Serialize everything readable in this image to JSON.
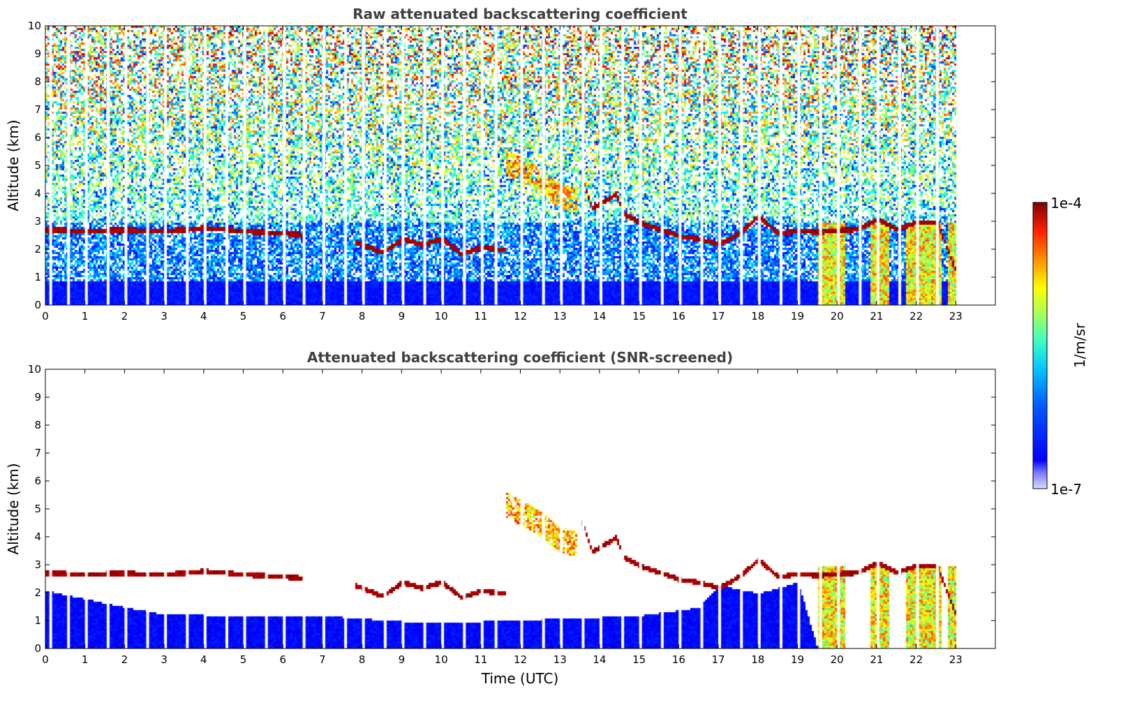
{
  "chart_data": [
    {
      "type": "heatmap",
      "title": "Raw attenuated backscattering coefficient",
      "xlabel": "",
      "ylabel": "Altitude (km)",
      "xlim": [
        0,
        24
      ],
      "ylim": [
        0,
        10
      ],
      "xticks": [
        "0",
        "1",
        "2",
        "3",
        "4",
        "5",
        "6",
        "7",
        "8",
        "9",
        "10",
        "11",
        "12",
        "13",
        "14",
        "15",
        "16",
        "17",
        "18",
        "19",
        "20",
        "21",
        "22",
        "23"
      ],
      "yticks": [
        "0",
        "1",
        "2",
        "3",
        "4",
        "5",
        "6",
        "7",
        "8",
        "9",
        "10"
      ],
      "colormap": "jet",
      "data_end_hour": 23,
      "gap_hours": [
        0.1,
        0.55,
        1.0,
        1.55,
        2.0,
        2.55,
        3.0,
        3.55,
        4.0,
        4.55,
        5.0,
        5.55,
        6.0,
        6.5,
        7.0,
        7.55,
        8.0,
        8.55,
        9.0,
        9.55,
        10.0,
        10.55,
        11.0,
        11.35,
        12.0,
        12.55,
        13.0,
        13.55,
        14.0,
        14.55,
        15.0,
        15.55,
        16.0,
        16.55,
        17.0,
        17.55,
        18.0,
        18.55,
        19.0,
        19.55,
        20.0,
        20.55,
        21.0,
        21.55,
        22.0,
        22.5
      ],
      "cloud_layer": [
        {
          "start": 0.0,
          "end": 6.5,
          "alt_km": [
            [
              0,
              2.72
            ],
            [
              1,
              2.7
            ],
            [
              2,
              2.72
            ],
            [
              3,
              2.68
            ],
            [
              4,
              2.8
            ],
            [
              5,
              2.68
            ],
            [
              6,
              2.6
            ],
            [
              6.5,
              2.55
            ]
          ]
        },
        {
          "start": 7.8,
          "end": 11.6,
          "alt_km": [
            [
              7.8,
              2.3
            ],
            [
              8.5,
              1.9
            ],
            [
              9,
              2.4
            ],
            [
              9.5,
              2.2
            ],
            [
              10,
              2.4
            ],
            [
              10.5,
              1.85
            ],
            [
              11,
              2.1
            ],
            [
              11.6,
              2.0
            ]
          ]
        },
        {
          "start": 13.5,
          "end": 19.0,
          "alt_km": [
            [
              13.5,
              4.7
            ],
            [
              13.8,
              3.5
            ],
            [
              14.4,
              4.0
            ],
            [
              14.6,
              3.3
            ],
            [
              15,
              3.0
            ],
            [
              16,
              2.5
            ],
            [
              16.5,
              2.4
            ],
            [
              17,
              2.2
            ],
            [
              17.5,
              2.6
            ],
            [
              18,
              3.2
            ],
            [
              18.5,
              2.6
            ],
            [
              19,
              2.7
            ]
          ]
        },
        {
          "start": 19.0,
          "end": 23.0,
          "alt_km": [
            [
              19,
              2.7
            ],
            [
              19.5,
              2.65
            ],
            [
              20,
              2.7
            ],
            [
              20.5,
              2.75
            ],
            [
              21,
              3.1
            ],
            [
              21.5,
              2.75
            ],
            [
              22,
              3.0
            ],
            [
              22.5,
              3.0
            ],
            [
              23,
              1.2
            ]
          ]
        }
      ],
      "plume": [
        [
          11.6,
          5.2
        ],
        [
          12.5,
          4.5
        ],
        [
          13.0,
          3.9
        ],
        [
          13.4,
          3.8
        ]
      ],
      "rain_columns": [
        [
          19.5,
          20.2
        ],
        [
          20.8,
          21.3
        ],
        [
          21.7,
          22.6
        ],
        [
          22.8,
          23.0
        ]
      ]
    },
    {
      "type": "heatmap",
      "title": "Attenuated backscattering coefficient (SNR-screened)",
      "xlabel": "Time (UTC)",
      "ylabel": "Altitude (km)",
      "xlim": [
        0,
        24
      ],
      "ylim": [
        0,
        10
      ],
      "xticks": [
        "0",
        "1",
        "2",
        "3",
        "4",
        "5",
        "6",
        "7",
        "8",
        "9",
        "10",
        "11",
        "12",
        "13",
        "14",
        "15",
        "16",
        "17",
        "18",
        "19",
        "20",
        "21",
        "22",
        "23"
      ],
      "yticks": [
        "0",
        "1",
        "2",
        "3",
        "4",
        "5",
        "6",
        "7",
        "8",
        "9",
        "10"
      ],
      "colormap": "jet",
      "data_end_hour": 23,
      "boundary_layer_top_km": [
        [
          0,
          2.1
        ],
        [
          2,
          1.5
        ],
        [
          3,
          1.25
        ],
        [
          5,
          1.2
        ],
        [
          7,
          1.2
        ],
        [
          9,
          1.0
        ],
        [
          11,
          1.0
        ],
        [
          13,
          1.1
        ],
        [
          15,
          1.2
        ],
        [
          16.5,
          1.5
        ],
        [
          17,
          2.3
        ],
        [
          18,
          2.0
        ],
        [
          19,
          2.4
        ],
        [
          19.5,
          0.0
        ]
      ]
    }
  ],
  "colorbar": {
    "label": "1/m/sr",
    "max_label": "1e-4",
    "min_label": "1e-7",
    "scale": "log",
    "range": [
      1e-07,
      0.0001
    ]
  }
}
